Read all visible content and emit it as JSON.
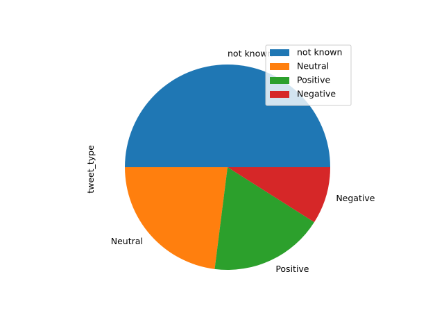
{
  "chart_data": {
    "type": "pie",
    "title": "",
    "ylabel": "tweet_type",
    "categories": [
      "not known",
      "Neutral",
      "Positive",
      "Negative"
    ],
    "values": [
      50,
      23,
      18,
      9
    ],
    "colors": [
      "#1f77b4",
      "#ff7f0e",
      "#2ca02c",
      "#d62728"
    ],
    "start_angle_deg": 0,
    "direction": "counterclockwise",
    "legend": {
      "position": "upper-right",
      "entries": [
        "not known",
        "Neutral",
        "Positive",
        "Negative"
      ]
    }
  }
}
